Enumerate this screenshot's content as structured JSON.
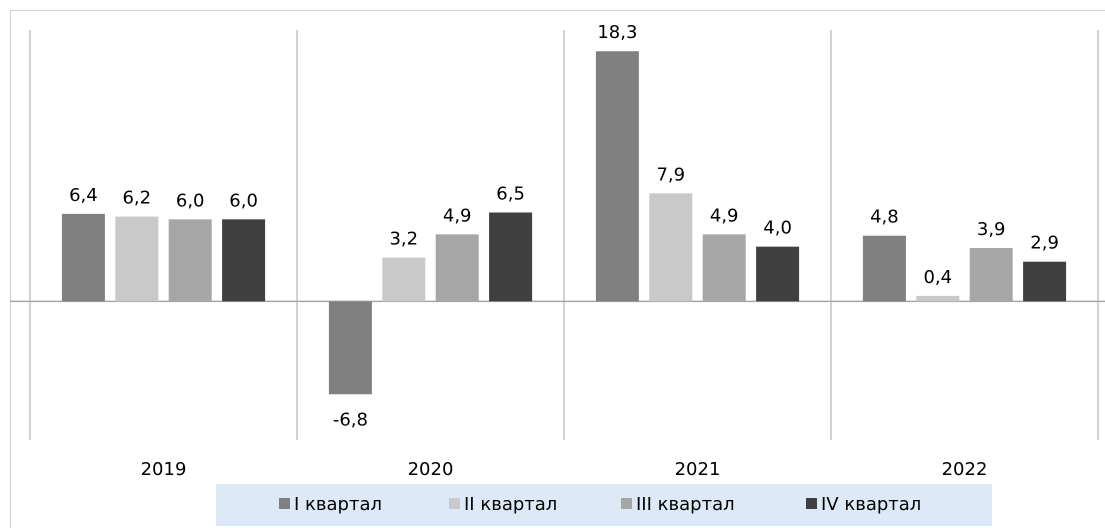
{
  "chart_data": {
    "type": "bar",
    "categories": [
      "2019",
      "2020",
      "2021",
      "2022"
    ],
    "series": [
      {
        "name": "I квартал",
        "color": "#808080",
        "values": [
          6.4,
          -6.8,
          18.3,
          4.8
        ],
        "value_labels": [
          "6,4",
          "-6,8",
          "18,3",
          "4,8"
        ]
      },
      {
        "name": "II квартал",
        "color": "#c9c9c9",
        "values": [
          6.2,
          3.2,
          7.9,
          0.4
        ],
        "value_labels": [
          "6,2",
          "3,2",
          "7,9",
          "0,4"
        ]
      },
      {
        "name": "III квартал",
        "color": "#a6a6a6",
        "values": [
          6.0,
          4.9,
          4.9,
          3.9
        ],
        "value_labels": [
          "6,0",
          "4,9",
          "4,9",
          "3,9"
        ]
      },
      {
        "name": "IV квартал",
        "color": "#404040",
        "values": [
          6.0,
          6.5,
          4.0,
          2.9
        ],
        "value_labels": [
          "6,0",
          "6,5",
          "4,0",
          "2,9"
        ]
      }
    ],
    "ylim": [
      -10,
      20
    ],
    "legend": "bottom"
  }
}
